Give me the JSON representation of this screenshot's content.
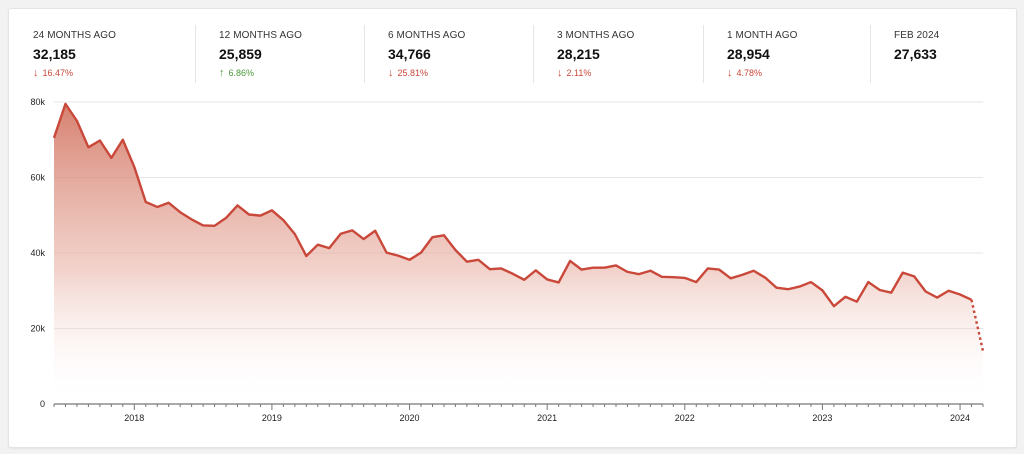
{
  "stats": [
    {
      "label": "24 MONTHS AGO",
      "value": "32,185",
      "change": "16.47%",
      "direction": "down"
    },
    {
      "label": "12 MONTHS AGO",
      "value": "25,859",
      "change": "6.86%",
      "direction": "up"
    },
    {
      "label": "6 MONTHS AGO",
      "value": "34,766",
      "change": "25.81%",
      "direction": "down"
    },
    {
      "label": "3 MONTHS AGO",
      "value": "28,215",
      "change": "2.11%",
      "direction": "down"
    },
    {
      "label": "1 MONTH AGO",
      "value": "28,954",
      "change": "4.78%",
      "direction": "down"
    },
    {
      "label": "FEB 2024",
      "value": "27,633",
      "change": "",
      "direction": ""
    }
  ],
  "icons": {
    "down": "arrow-down-icon",
    "up": "arrow-up-icon"
  },
  "colors": {
    "line": "#c9483a",
    "fill": "#d9826f",
    "down": "#c9483a",
    "up": "#4c9a3b"
  },
  "chart_data": {
    "type": "area",
    "title": "",
    "xlabel": "",
    "ylabel": "",
    "ylim": [
      0,
      80000
    ],
    "yticks": [
      0,
      20000,
      40000,
      60000,
      80000
    ],
    "ytick_labels": [
      "0",
      "20k",
      "40k",
      "60k",
      "80k"
    ],
    "xtick_labels": [
      "2018",
      "2019",
      "2020",
      "2021",
      "2022",
      "2023",
      "2024"
    ],
    "xlim": [
      "2017-06",
      "2024-03"
    ],
    "grid": true,
    "dashed_last_segment": true,
    "x": [
      "2017-06",
      "2017-07",
      "2017-08",
      "2017-09",
      "2017-10",
      "2017-11",
      "2017-12",
      "2018-01",
      "2018-02",
      "2018-03",
      "2018-04",
      "2018-05",
      "2018-06",
      "2018-07",
      "2018-08",
      "2018-09",
      "2018-10",
      "2018-11",
      "2018-12",
      "2019-01",
      "2019-02",
      "2019-03",
      "2019-04",
      "2019-05",
      "2019-06",
      "2019-07",
      "2019-08",
      "2019-09",
      "2019-10",
      "2019-11",
      "2019-12",
      "2020-01",
      "2020-02",
      "2020-03",
      "2020-04",
      "2020-05",
      "2020-06",
      "2020-07",
      "2020-08",
      "2020-09",
      "2020-10",
      "2020-11",
      "2020-12",
      "2021-01",
      "2021-02",
      "2021-03",
      "2021-04",
      "2021-05",
      "2021-06",
      "2021-07",
      "2021-08",
      "2021-09",
      "2021-10",
      "2021-11",
      "2021-12",
      "2022-01",
      "2022-02",
      "2022-03",
      "2022-04",
      "2022-05",
      "2022-06",
      "2022-07",
      "2022-08",
      "2022-09",
      "2022-10",
      "2022-11",
      "2022-12",
      "2023-01",
      "2023-02",
      "2023-03",
      "2023-04",
      "2023-05",
      "2023-06",
      "2023-07",
      "2023-08",
      "2023-09",
      "2023-10",
      "2023-11",
      "2023-12",
      "2024-01",
      "2024-02",
      "2024-03"
    ],
    "values": [
      70500,
      79500,
      75000,
      68000,
      69800,
      65200,
      70000,
      62800,
      53500,
      52200,
      53300,
      50800,
      48900,
      47300,
      47200,
      49300,
      52600,
      50200,
      49900,
      51300,
      48700,
      45000,
      39200,
      42200,
      41300,
      45100,
      46000,
      43700,
      45900,
      40100,
      39300,
      38200,
      40100,
      44200,
      44700,
      40800,
      37700,
      38200,
      35700,
      35900,
      34500,
      32900,
      35400,
      33000,
      32200,
      37900,
      35600,
      36100,
      36100,
      36700,
      35000,
      34400,
      35300,
      33700,
      33600,
      33400,
      32300,
      35900,
      35600,
      33300,
      34200,
      35300,
      33500,
      30800,
      30400,
      31100,
      32300,
      30100,
      25900,
      28400,
      27100,
      32300,
      30200,
      29500,
      34800,
      33800,
      29800,
      28200,
      30000,
      29000,
      27600,
      14000
    ]
  }
}
